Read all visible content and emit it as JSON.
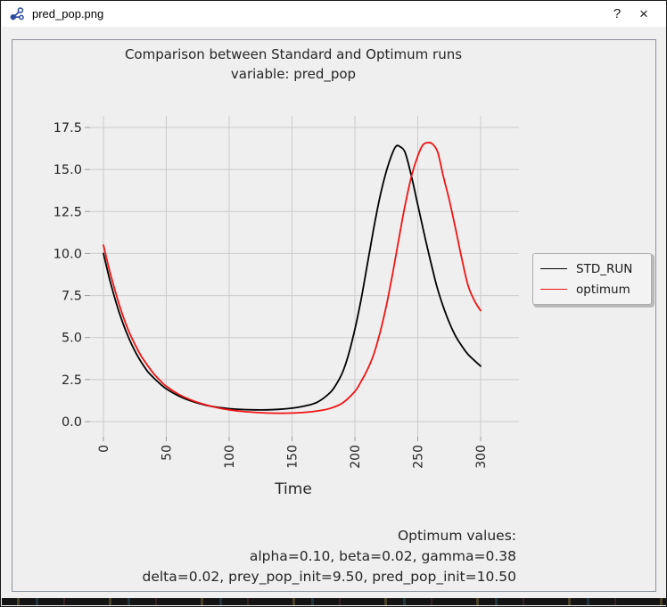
{
  "window": {
    "title": "pred_pop.png",
    "help_label": "?",
    "close_label": "×"
  },
  "figure": {
    "title_line1": "Comparison between Standard and Optimum runs",
    "title_line2": "variable: pred_pop",
    "xlabel": "Time",
    "annotation": {
      "line1": "Optimum values:",
      "line2": "alpha=0.10, beta=0.02, gamma=0.38",
      "line3": "delta=0.02, prey_pop_init=9.50, pred_pop_init=10.50"
    }
  },
  "chart_data": {
    "type": "line",
    "title": "Comparison between Standard and Optimum runs\nvariable: pred_pop",
    "xlabel": "Time",
    "ylabel": "",
    "xlim": [
      -11,
      330
    ],
    "ylim": [
      -0.9,
      18.3
    ],
    "xticks": [
      0,
      50,
      100,
      150,
      200,
      250,
      300
    ],
    "xticklabels": [
      "0",
      "50",
      "100",
      "150",
      "200",
      "250",
      "300"
    ],
    "yticks": [
      0.0,
      2.5,
      5.0,
      7.5,
      10.0,
      12.5,
      15.0,
      17.5
    ],
    "yticklabels": [
      "0.0",
      "2.5",
      "5.0",
      "7.5",
      "10.0",
      "12.5",
      "15.0",
      "17.5"
    ],
    "grid": true,
    "legend_position": "outside-right",
    "grid_color": "#cbcbcb",
    "tick_color": "#9a9a9a",
    "series": [
      {
        "name": "STD_RUN",
        "color": "#000000",
        "x": [
          0,
          5,
          10,
          15,
          20,
          25,
          30,
          35,
          40,
          45,
          50,
          60,
          70,
          80,
          90,
          100,
          110,
          120,
          130,
          140,
          150,
          160,
          170,
          180,
          185,
          190,
          195,
          200,
          205,
          210,
          215,
          220,
          225,
          230,
          233,
          236,
          240,
          245,
          250,
          255,
          260,
          265,
          270,
          275,
          280,
          285,
          290,
          300
        ],
        "y": [
          10.0,
          8.45,
          7.1,
          5.95,
          5.0,
          4.2,
          3.55,
          3.0,
          2.6,
          2.25,
          1.95,
          1.52,
          1.22,
          1.0,
          0.86,
          0.77,
          0.72,
          0.7,
          0.7,
          0.73,
          0.8,
          0.93,
          1.15,
          1.7,
          2.2,
          2.9,
          4.0,
          5.5,
          7.3,
          9.4,
          11.5,
          13.4,
          14.9,
          16.0,
          16.4,
          16.35,
          16.0,
          14.6,
          12.9,
          11.2,
          9.6,
          8.1,
          6.9,
          5.9,
          5.1,
          4.5,
          4.0,
          3.3
        ]
      },
      {
        "name": "optimum",
        "color": "#f01414",
        "x": [
          0,
          5,
          10,
          15,
          20,
          25,
          30,
          35,
          40,
          45,
          50,
          60,
          70,
          80,
          90,
          100,
          110,
          120,
          130,
          140,
          150,
          160,
          170,
          180,
          190,
          200,
          205,
          210,
          215,
          220,
          225,
          230,
          235,
          240,
          245,
          250,
          254,
          258,
          262,
          266,
          270,
          275,
          280,
          285,
          290,
          295,
          300
        ],
        "y": [
          10.5,
          8.95,
          7.6,
          6.4,
          5.4,
          4.6,
          3.9,
          3.35,
          2.85,
          2.45,
          2.1,
          1.62,
          1.28,
          1.03,
          0.84,
          0.7,
          0.61,
          0.55,
          0.51,
          0.5,
          0.51,
          0.55,
          0.63,
          0.78,
          1.1,
          1.8,
          2.4,
          3.1,
          4.0,
          5.3,
          6.9,
          8.8,
          10.9,
          12.9,
          14.6,
          15.8,
          16.45,
          16.6,
          16.5,
          16.0,
          14.7,
          13.2,
          11.5,
          9.7,
          8.1,
          7.2,
          6.6
        ]
      }
    ],
    "annotation": "Optimum values:\nalpha=0.10, beta=0.02, gamma=0.38\ndelta=0.02, prey_pop_init=9.50, pred_pop_init=10.50"
  }
}
